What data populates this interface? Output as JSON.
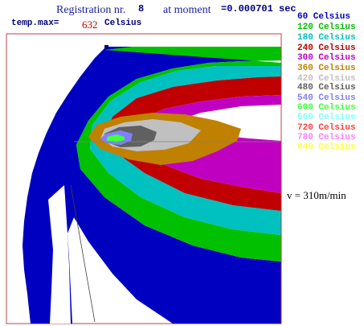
{
  "header": {
    "registration_label": "Registration nr.",
    "registration_value": "8",
    "moment_label": "at moment",
    "moment_value": "=0.000701 sec",
    "temp_label": "temp.max=",
    "temp_value": "632",
    "temp_unit": "Celsius"
  },
  "velocity_label": "v = 310m/min",
  "legend": [
    {
      "label": "60 Celsius",
      "color": "#0000c0"
    },
    {
      "label": "120 Celsius",
      "color": "#00c000"
    },
    {
      "label": "180 Celsius",
      "color": "#00c0c0"
    },
    {
      "label": "240 Celsius",
      "color": "#c00000"
    },
    {
      "label": "300 Celsius",
      "color": "#c000c0"
    },
    {
      "label": "360 Celsius",
      "color": "#c08000"
    },
    {
      "label": "420 Celsius",
      "color": "#c0c0c0"
    },
    {
      "label": "480 Celsius",
      "color": "#606060"
    },
    {
      "label": "540 Celsius",
      "color": "#8080ff"
    },
    {
      "label": "600 Celsius",
      "color": "#40ff40"
    },
    {
      "label": "660 Celsius",
      "color": "#80ffff"
    },
    {
      "label": "720 Celsius",
      "color": "#ff4040"
    },
    {
      "label": "780 Celsius",
      "color": "#ff80ff"
    },
    {
      "label": "840 Celsius",
      "color": "#ffff40"
    }
  ]
}
